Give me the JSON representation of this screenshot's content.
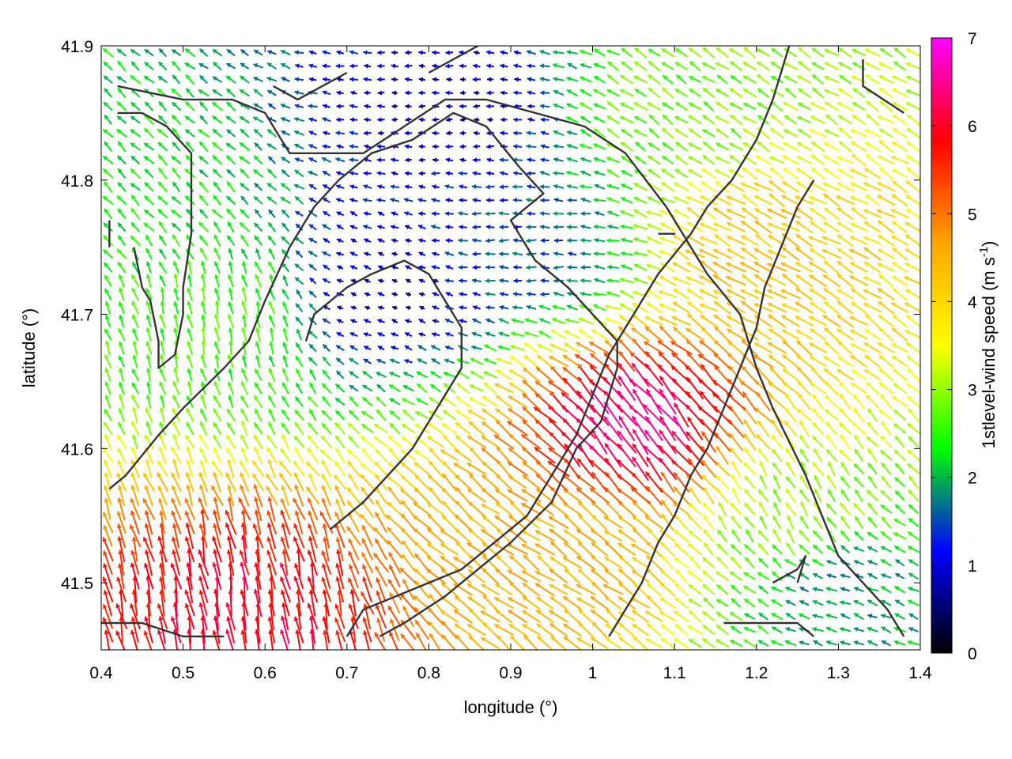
{
  "chart_data": {
    "type": "vector-field",
    "xlabel": "longitude (°)",
    "ylabel": "latitude (°)",
    "xlim": [
      0.4,
      1.4
    ],
    "ylim": [
      41.45,
      41.9
    ],
    "xticks": [
      "0.4",
      "0.5",
      "0.6",
      "0.7",
      "0.8",
      "0.9",
      "1",
      "1.1",
      "1.2",
      "1.3",
      "1.4"
    ],
    "xtick_values": [
      0.4,
      0.5,
      0.6,
      0.7,
      0.8,
      0.9,
      1.0,
      1.1,
      1.2,
      1.3,
      1.4
    ],
    "yticks": [
      "41.5",
      "41.6",
      "41.7",
      "41.8",
      "41.9"
    ],
    "ytick_values": [
      41.5,
      41.6,
      41.7,
      41.8,
      41.9
    ],
    "colorbar": {
      "label": "1stlevel-wind speed (m s",
      "label_superscript": "-1",
      "label_close": ")",
      "range": [
        0,
        7
      ],
      "ticks": [
        "0",
        "1",
        "2",
        "3",
        "4",
        "5",
        "6",
        "7"
      ],
      "tick_values": [
        0,
        1,
        2,
        3,
        4,
        5,
        6,
        7
      ],
      "colormap": [
        "#000000",
        "#0000ff",
        "#00ff00",
        "#ffff00",
        "#ffa500",
        "#ff0000",
        "#ff00ff"
      ]
    },
    "grid": false,
    "vector_field": {
      "description_free_sampling": true,
      "nx": 60,
      "ny": 45,
      "regions": [
        {
          "lon": 0.75,
          "lat": 41.72,
          "speed": 0.8,
          "dir_deg": 160
        },
        {
          "lon": 0.82,
          "lat": 41.85,
          "speed": 0.8,
          "dir_deg": 180
        },
        {
          "lon": 0.92,
          "lat": 41.75,
          "speed": 1.5,
          "dir_deg": 180
        },
        {
          "lon": 0.45,
          "lat": 41.8,
          "speed": 2.3,
          "dir_deg": 135
        },
        {
          "lon": 0.55,
          "lat": 41.7,
          "speed": 2.6,
          "dir_deg": 100
        },
        {
          "lon": 1.05,
          "lat": 41.62,
          "speed": 6.5,
          "dir_deg": 130
        },
        {
          "lon": 0.58,
          "lat": 41.48,
          "speed": 6.0,
          "dir_deg": 100
        },
        {
          "lon": 1.2,
          "lat": 41.75,
          "speed": 4.3,
          "dir_deg": 150
        },
        {
          "lon": 1.25,
          "lat": 41.55,
          "speed": 3.0,
          "dir_deg": 120
        },
        {
          "lon": 1.1,
          "lat": 41.85,
          "speed": 2.8,
          "dir_deg": 145
        },
        {
          "lon": 1.3,
          "lat": 41.5,
          "speed": 1.8,
          "dir_deg": 160
        },
        {
          "lon": 0.95,
          "lat": 41.52,
          "speed": 4.5,
          "dir_deg": 145
        }
      ]
    },
    "contours": [
      [
        [
          0.42,
          41.87
        ],
        [
          0.5,
          41.86
        ],
        [
          0.56,
          41.86
        ],
        [
          0.6,
          41.85
        ],
        [
          0.63,
          41.82
        ],
        [
          0.68,
          41.82
        ],
        [
          0.72,
          41.82
        ],
        [
          0.77,
          41.84
        ],
        [
          0.82,
          41.86
        ],
        [
          0.87,
          41.86
        ],
        [
          0.93,
          41.85
        ],
        [
          0.99,
          41.84
        ],
        [
          1.04,
          41.82
        ],
        [
          1.09,
          41.78
        ],
        [
          1.14,
          41.73
        ],
        [
          1.18,
          41.7
        ],
        [
          1.2,
          41.66
        ],
        [
          1.22,
          41.63
        ],
        [
          1.26,
          41.58
        ],
        [
          1.3,
          41.52
        ],
        [
          1.36,
          41.48
        ],
        [
          1.38,
          41.46
        ]
      ],
      [
        [
          0.42,
          41.85
        ],
        [
          0.45,
          41.85
        ],
        [
          0.48,
          41.84
        ],
        [
          0.51,
          41.82
        ],
        [
          0.51,
          41.79
        ],
        [
          0.51,
          41.76
        ],
        [
          0.5,
          41.72
        ],
        [
          0.5,
          41.7
        ],
        [
          0.49,
          41.67
        ],
        [
          0.47,
          41.66
        ],
        [
          0.47,
          41.68
        ],
        [
          0.46,
          41.71
        ],
        [
          0.45,
          41.72
        ],
        [
          0.44,
          41.75
        ]
      ],
      [
        [
          0.41,
          41.57
        ],
        [
          0.43,
          41.58
        ],
        [
          0.47,
          41.61
        ],
        [
          0.5,
          41.63
        ],
        [
          0.55,
          41.66
        ],
        [
          0.58,
          41.68
        ],
        [
          0.6,
          41.71
        ],
        [
          0.63,
          41.75
        ],
        [
          0.66,
          41.78
        ],
        [
          0.69,
          41.8
        ],
        [
          0.73,
          41.82
        ],
        [
          0.78,
          41.83
        ],
        [
          0.83,
          41.85
        ],
        [
          0.87,
          41.84
        ],
        [
          0.91,
          41.81
        ],
        [
          0.94,
          41.79
        ],
        [
          0.92,
          41.78
        ],
        [
          0.9,
          41.77
        ],
        [
          0.93,
          41.74
        ],
        [
          0.97,
          41.72
        ],
        [
          1.0,
          41.7
        ],
        [
          1.03,
          41.68
        ],
        [
          1.03,
          41.66
        ],
        [
          1.01,
          41.62
        ],
        [
          0.98,
          41.6
        ],
        [
          0.95,
          41.56
        ],
        [
          0.9,
          41.53
        ],
        [
          0.86,
          41.51
        ],
        [
          0.82,
          41.49
        ],
        [
          0.77,
          41.47
        ],
        [
          0.74,
          41.46
        ]
      ],
      [
        [
          0.4,
          41.47
        ],
        [
          0.45,
          41.47
        ],
        [
          0.5,
          41.46
        ],
        [
          0.55,
          41.46
        ]
      ],
      [
        [
          0.68,
          41.54
        ],
        [
          0.72,
          41.56
        ],
        [
          0.75,
          41.58
        ],
        [
          0.78,
          41.6
        ],
        [
          0.8,
          41.62
        ],
        [
          0.82,
          41.64
        ],
        [
          0.84,
          41.66
        ],
        [
          0.84,
          41.69
        ],
        [
          0.82,
          41.71
        ],
        [
          0.8,
          41.73
        ],
        [
          0.77,
          41.74
        ],
        [
          0.73,
          41.73
        ],
        [
          0.7,
          41.72
        ],
        [
          0.68,
          41.71
        ],
        [
          0.66,
          41.7
        ],
        [
          0.65,
          41.68
        ]
      ],
      [
        [
          0.7,
          41.46
        ],
        [
          0.72,
          41.48
        ],
        [
          0.76,
          41.49
        ],
        [
          0.8,
          41.5
        ],
        [
          0.84,
          41.51
        ],
        [
          0.88,
          41.53
        ],
        [
          0.92,
          41.55
        ],
        [
          0.95,
          41.58
        ],
        [
          0.98,
          41.61
        ],
        [
          1.0,
          41.64
        ],
        [
          1.02,
          41.67
        ],
        [
          1.05,
          41.7
        ],
        [
          1.08,
          41.73
        ],
        [
          1.12,
          41.76
        ],
        [
          1.14,
          41.78
        ],
        [
          1.17,
          41.8
        ],
        [
          1.2,
          41.83
        ],
        [
          1.22,
          41.86
        ],
        [
          1.24,
          41.9
        ]
      ],
      [
        [
          1.02,
          41.46
        ],
        [
          1.04,
          41.48
        ],
        [
          1.06,
          41.5
        ],
        [
          1.08,
          41.53
        ],
        [
          1.1,
          41.55
        ],
        [
          1.12,
          41.58
        ],
        [
          1.14,
          41.6
        ],
        [
          1.16,
          41.63
        ],
        [
          1.18,
          41.66
        ],
        [
          1.2,
          41.69
        ],
        [
          1.21,
          41.72
        ],
        [
          1.23,
          41.75
        ],
        [
          1.25,
          41.78
        ],
        [
          1.27,
          41.8
        ]
      ],
      [
        [
          1.16,
          41.47
        ],
        [
          1.2,
          41.47
        ],
        [
          1.25,
          41.47
        ],
        [
          1.27,
          41.46
        ]
      ],
      [
        [
          1.22,
          41.5
        ],
        [
          1.25,
          41.51
        ],
        [
          1.26,
          41.52
        ],
        [
          1.25,
          41.5
        ]
      ],
      [
        [
          1.08,
          41.76
        ],
        [
          1.1,
          41.76
        ],
        [
          1.09,
          41.76
        ]
      ],
      [
        [
          0.61,
          41.87
        ],
        [
          0.64,
          41.86
        ],
        [
          0.67,
          41.87
        ],
        [
          0.7,
          41.88
        ]
      ],
      [
        [
          0.8,
          41.88
        ],
        [
          0.83,
          41.89
        ],
        [
          0.86,
          41.9
        ]
      ],
      [
        [
          1.33,
          41.89
        ],
        [
          1.33,
          41.87
        ],
        [
          1.38,
          41.85
        ]
      ],
      [
        [
          0.41,
          41.77
        ],
        [
          0.41,
          41.75
        ]
      ]
    ]
  }
}
